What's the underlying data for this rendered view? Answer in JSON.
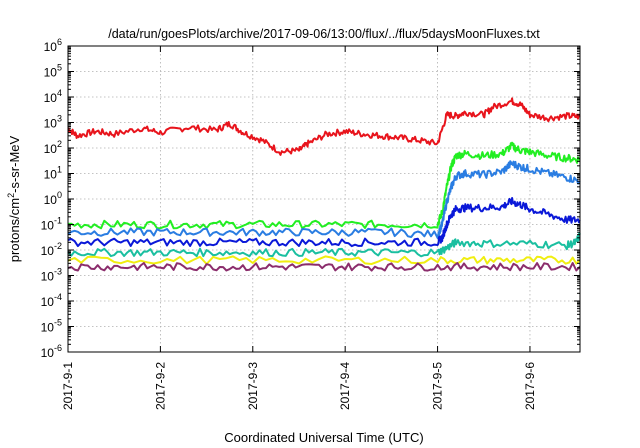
{
  "chart_data": {
    "type": "line",
    "title": "/data/run/goesPlots/archive/2017-09-06/13:00/flux/../flux/5daysMoonFluxes.txt",
    "xlabel": "Coordinated Universal Time (UTC)",
    "ylabel": "protons/cm²-s-sr-MeV",
    "ylabel_parts": {
      "pre": "protons/cm",
      "sup": "2",
      "post": "-s-sr-MeV"
    },
    "yscale": "log",
    "ylim_exponent": [
      -6,
      6
    ],
    "y_tick_base": "10",
    "y_tick_exponents": [
      "-6",
      "-5",
      "-4",
      "-3",
      "-2",
      "-1",
      "0",
      "1",
      "2",
      "3",
      "4",
      "5",
      "6"
    ],
    "xlim": [
      "2017-09-01",
      "2017-09-06 13:00"
    ],
    "x_ticks": [
      "2017-09-01",
      "2017-09-02",
      "2017-09-03",
      "2017-09-04",
      "2017-09-05",
      "2017-09-06"
    ],
    "x_tick_labels": [
      "2017-9-1",
      "2017-9-2",
      "2017-9-3",
      "2017-9-4",
      "2017-9-5",
      "2017-9-6"
    ],
    "grid": true,
    "series": [
      {
        "color": "#e8141c",
        "x": [
          0,
          0.1,
          0.3,
          0.5,
          0.8,
          1.0,
          1.3,
          1.6,
          1.75,
          1.9,
          2.1,
          2.3,
          2.5,
          2.6,
          2.8,
          3.0,
          3.2,
          3.4,
          3.6,
          3.8,
          4.0,
          4.1,
          4.2,
          4.3,
          4.5,
          4.6,
          4.8,
          4.9,
          5.0,
          5.2,
          5.4,
          5.54
        ],
        "y": [
          600,
          300,
          450,
          350,
          600,
          400,
          650,
          500,
          900,
          400,
          200,
          70,
          80,
          150,
          350,
          450,
          350,
          300,
          250,
          200,
          150,
          2000,
          1800,
          2500,
          2000,
          4000,
          7000,
          5000,
          2000,
          1500,
          1800,
          1700
        ]
      },
      {
        "color": "#22ee22",
        "x": [
          0,
          0.5,
          1.0,
          1.5,
          2.0,
          2.5,
          3.0,
          3.5,
          4.0,
          4.05,
          4.1,
          4.15,
          4.2,
          4.3,
          4.5,
          4.7,
          4.8,
          4.9,
          5.0,
          5.2,
          5.4,
          5.54
        ],
        "y": [
          0.1,
          0.1,
          0.1,
          0.1,
          0.1,
          0.1,
          0.1,
          0.1,
          0.1,
          0.3,
          3,
          20,
          50,
          60,
          50,
          60,
          120,
          80,
          70,
          50,
          40,
          35
        ]
      },
      {
        "color": "#2a7de2",
        "x": [
          0,
          0.5,
          1.0,
          1.5,
          2.0,
          2.5,
          3.0,
          3.5,
          4.0,
          4.05,
          4.1,
          4.15,
          4.2,
          4.3,
          4.5,
          4.7,
          4.8,
          4.9,
          5.0,
          5.2,
          5.4,
          5.54
        ],
        "y": [
          0.05,
          0.05,
          0.05,
          0.05,
          0.05,
          0.05,
          0.05,
          0.05,
          0.04,
          0.1,
          0.8,
          3,
          8,
          10,
          9,
          12,
          25,
          18,
          15,
          10,
          7,
          5
        ]
      },
      {
        "color": "#0a18d8",
        "x": [
          0,
          0.5,
          1.0,
          1.5,
          2.0,
          2.5,
          3.0,
          3.5,
          4.0,
          4.05,
          4.1,
          4.15,
          4.2,
          4.3,
          4.5,
          4.7,
          4.8,
          4.9,
          5.0,
          5.2,
          5.4,
          5.54
        ],
        "y": [
          0.02,
          0.02,
          0.02,
          0.02,
          0.02,
          0.02,
          0.02,
          0.02,
          0.02,
          0.03,
          0.1,
          0.25,
          0.4,
          0.45,
          0.45,
          0.5,
          0.8,
          0.6,
          0.4,
          0.25,
          0.15,
          0.15
        ]
      },
      {
        "color": "#1abfa0",
        "x": [
          0,
          0.5,
          1.0,
          1.5,
          2.0,
          2.5,
          3.0,
          3.5,
          4.0,
          4.1,
          4.2,
          4.5,
          5.0,
          5.4,
          5.5,
          5.54
        ],
        "y": [
          0.008,
          0.008,
          0.008,
          0.008,
          0.008,
          0.008,
          0.008,
          0.008,
          0.008,
          0.012,
          0.02,
          0.018,
          0.018,
          0.015,
          0.02,
          0.04
        ]
      },
      {
        "color": "#f0ee10",
        "x": [
          0,
          1.0,
          2.0,
          3.0,
          4.0,
          4.5,
          5.0,
          5.54
        ],
        "y": [
          0.004,
          0.004,
          0.004,
          0.004,
          0.004,
          0.004,
          0.004,
          0.004
        ]
      },
      {
        "color": "#8b2d6c",
        "x": [
          0,
          0.5,
          1.0,
          1.5,
          2.0,
          2.5,
          3.0,
          3.5,
          4.0,
          4.5,
          5.0,
          5.54
        ],
        "y": [
          0.0022,
          0.0022,
          0.0022,
          0.0022,
          0.0022,
          0.0022,
          0.0022,
          0.0022,
          0.0022,
          0.0022,
          0.0022,
          0.0022
        ]
      }
    ]
  }
}
